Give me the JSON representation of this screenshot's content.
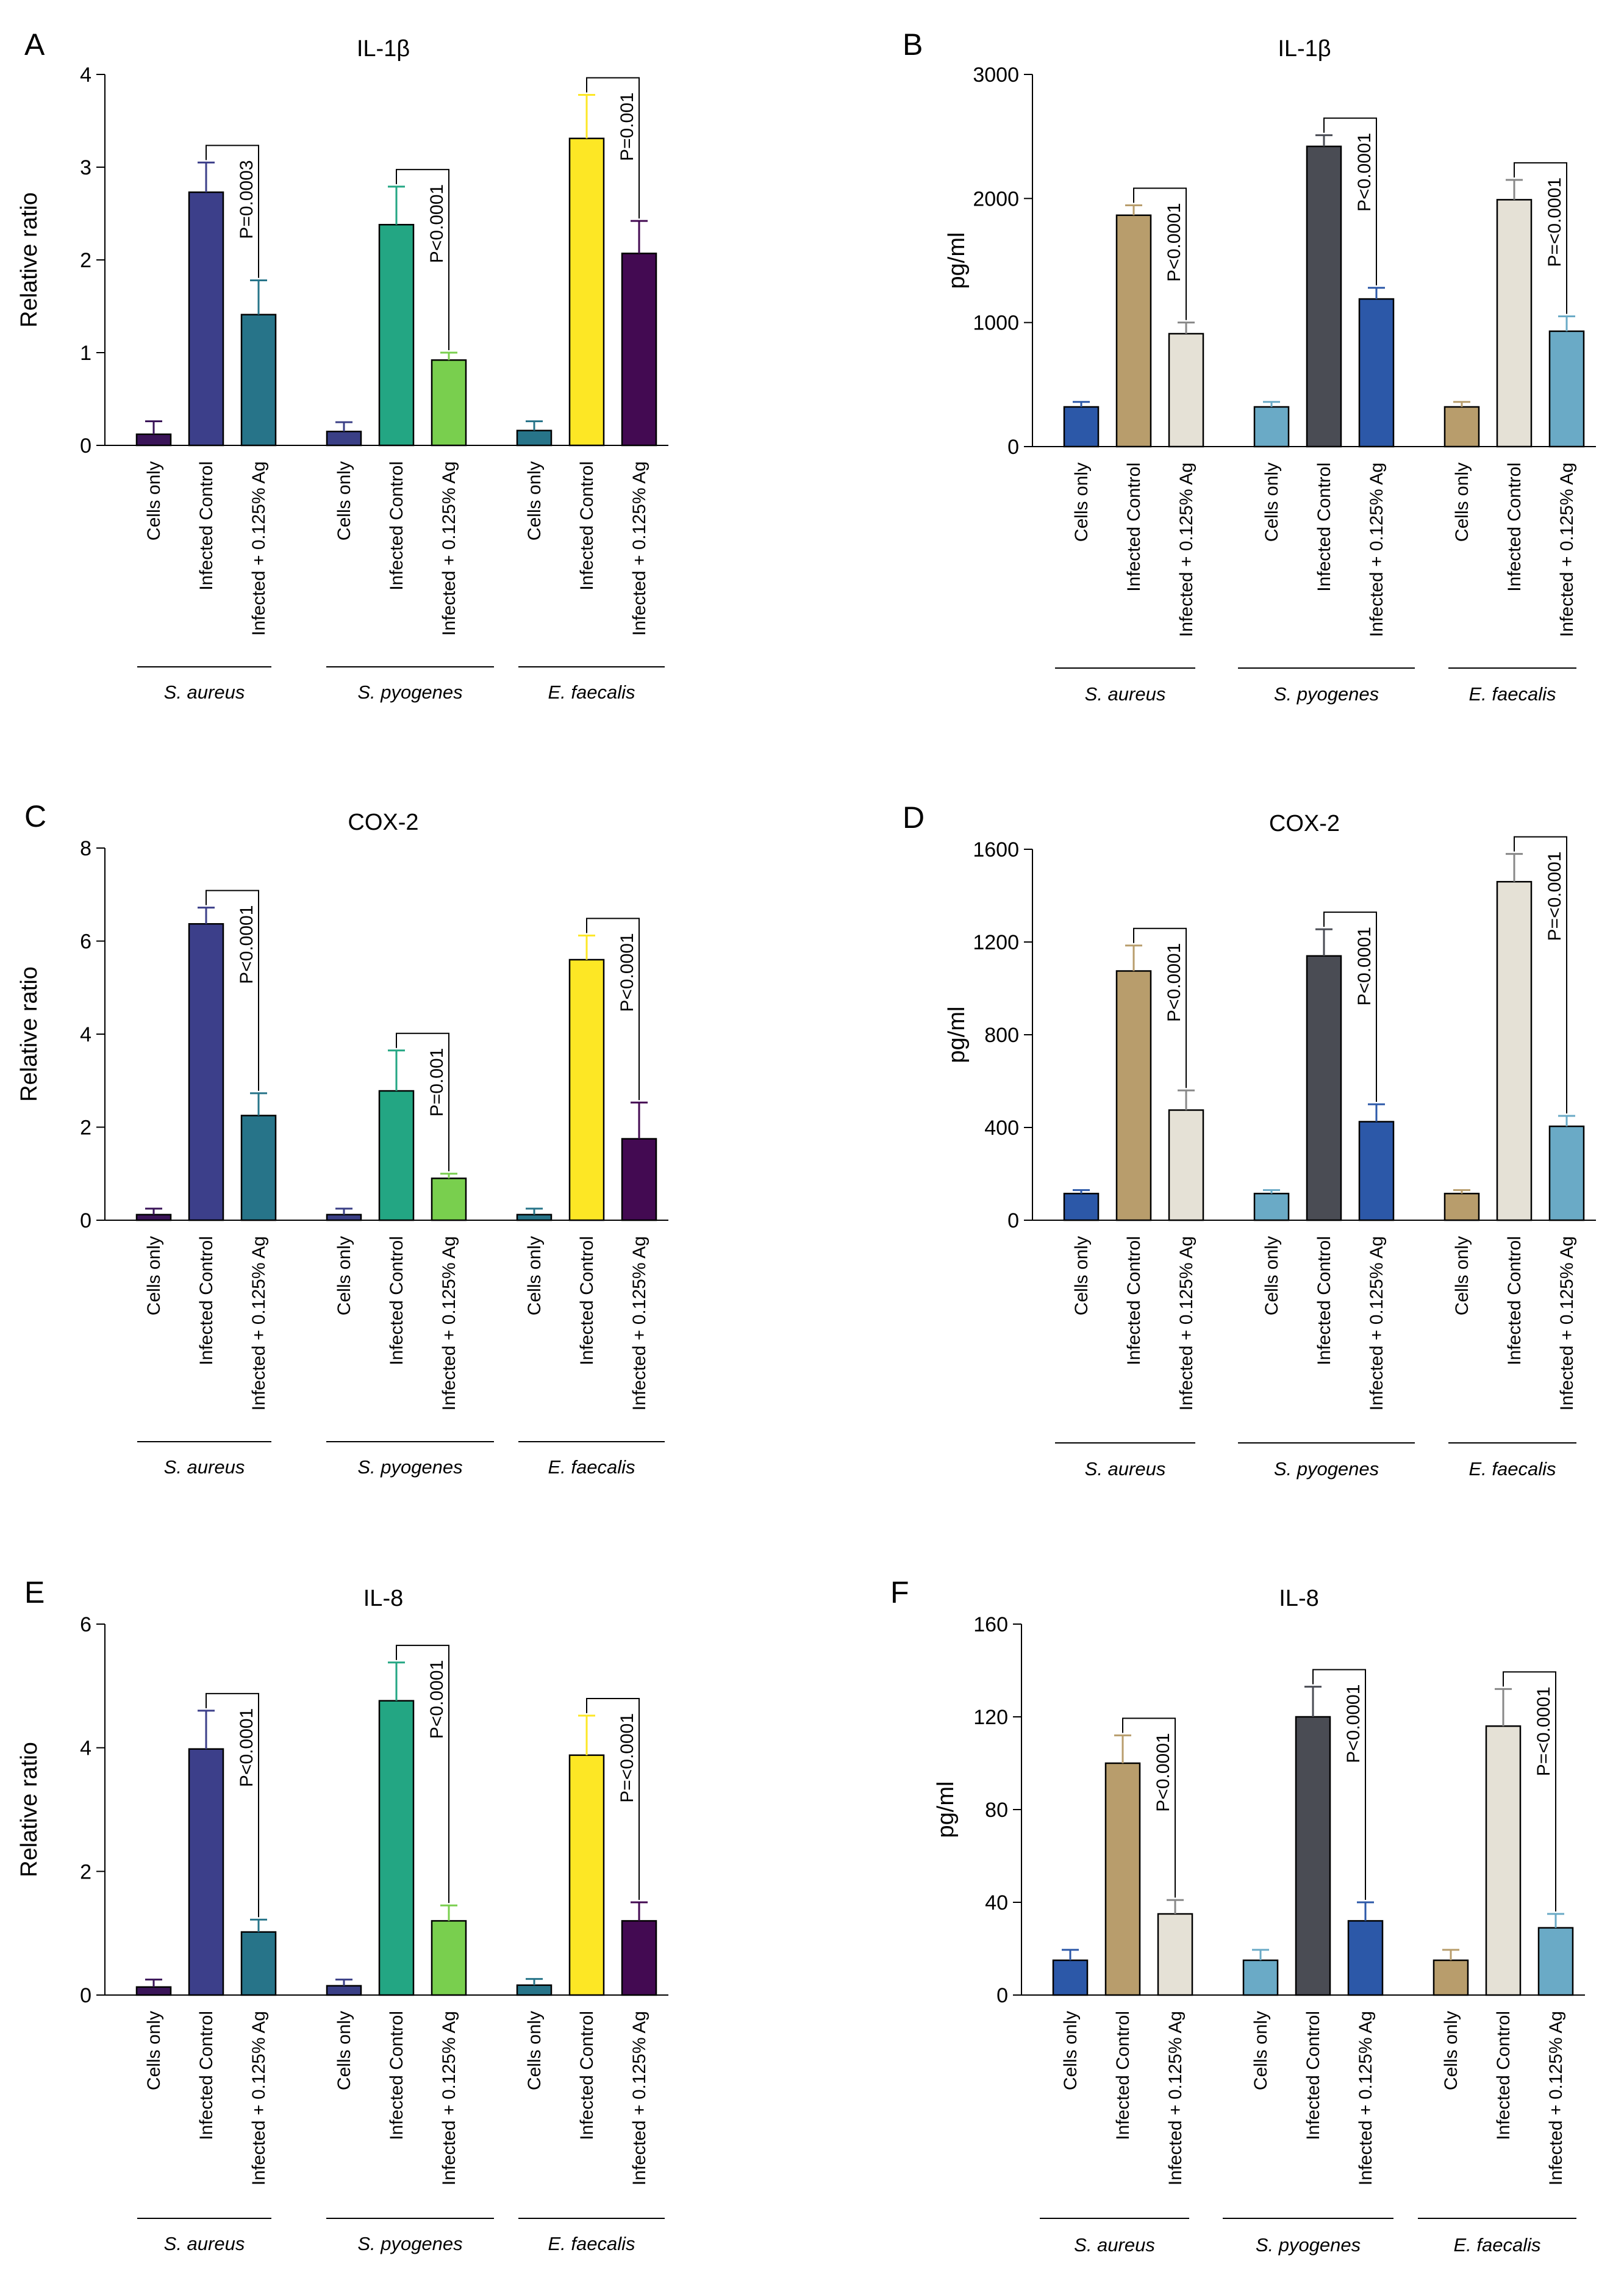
{
  "figure": {
    "groups": [
      "S. aureus",
      "S. pyogenes",
      "E. faecalis"
    ],
    "categories": [
      "Cells only",
      "Infected Control",
      "Infected + 0.125% Ag"
    ]
  },
  "colors": {
    "qpcr": [
      [
        "#3a1458",
        "#3c3f8a",
        "#277489"
      ],
      [
        "#3a3f86",
        "#23a683",
        "#79cf4e"
      ],
      [
        "#277489",
        "#fde725",
        "#430a52"
      ]
    ],
    "elisa": [
      [
        "#2c58a8",
        "#b89d6c",
        "#e5e1d6"
      ],
      [
        "#6aaac6",
        "#4a4c54",
        "#2c58a8"
      ],
      [
        "#b89d6c",
        "#e5e1d6",
        "#6aaac6"
      ]
    ]
  },
  "chart_data": [
    {
      "panel": "A",
      "type": "bar",
      "title": "IL-1β",
      "ylabel": "Relative ratio",
      "ylim": [
        0,
        4
      ],
      "yticks": [
        "0",
        "1",
        "2",
        "3",
        "4"
      ],
      "categories": [
        "Cells only",
        "Infected Control",
        "Infected + 0.125% Ag"
      ],
      "series": [
        {
          "name": "S. aureus",
          "values": [
            0.12,
            2.73,
            1.41
          ],
          "errors": [
            0.14,
            0.32,
            0.37
          ],
          "pvalue": "P=0.0003"
        },
        {
          "name": "S. pyogenes",
          "values": [
            0.15,
            2.38,
            0.92
          ],
          "errors": [
            0.1,
            0.41,
            0.08
          ],
          "pvalue": "P<0.0001"
        },
        {
          "name": "E. faecalis",
          "values": [
            0.16,
            3.31,
            2.07
          ],
          "errors": [
            0.1,
            0.47,
            0.35
          ],
          "pvalue": "P=0.001"
        }
      ]
    },
    {
      "panel": "B",
      "type": "bar",
      "title": "IL-1β",
      "ylabel": "pg/ml",
      "ylim": [
        0,
        3000
      ],
      "yticks": [
        "0",
        "1000",
        "2000",
        "3000"
      ],
      "categories": [
        "Cells only",
        "Infected Control",
        "Infected + 0.125% Ag"
      ],
      "series": [
        {
          "name": "S. aureus",
          "values": [
            320,
            1865,
            910
          ],
          "errors": [
            40,
            80,
            90
          ],
          "pvalue": "P<0.0001"
        },
        {
          "name": "S. pyogenes",
          "values": [
            320,
            2420,
            1190
          ],
          "errors": [
            40,
            90,
            90
          ],
          "pvalue": "P<0.0001"
        },
        {
          "name": "E. faecalis",
          "values": [
            320,
            1990,
            930
          ],
          "errors": [
            40,
            160,
            120
          ],
          "pvalue": "P=<0.0001"
        }
      ]
    },
    {
      "panel": "C",
      "type": "bar",
      "title": "COX-2",
      "ylabel": "Relative ratio",
      "ylim": [
        0,
        8
      ],
      "yticks": [
        "0",
        "2",
        "4",
        "6",
        "8"
      ],
      "categories": [
        "Cells only",
        "Infected Control",
        "Infected + 0.125% Ag"
      ],
      "series": [
        {
          "name": "S. aureus",
          "values": [
            0.12,
            6.37,
            2.25
          ],
          "errors": [
            0.13,
            0.35,
            0.48
          ],
          "pvalue": "P<0.0001"
        },
        {
          "name": "S. pyogenes",
          "values": [
            0.12,
            2.78,
            0.9
          ],
          "errors": [
            0.13,
            0.87,
            0.1
          ],
          "pvalue": "P=0.001"
        },
        {
          "name": "E. faecalis",
          "values": [
            0.12,
            5.6,
            1.75
          ],
          "errors": [
            0.13,
            0.52,
            0.78
          ],
          "pvalue": "P<0.0001"
        }
      ]
    },
    {
      "panel": "D",
      "type": "bar",
      "title": "COX-2",
      "ylabel": "pg/ml",
      "ylim": [
        0,
        1600
      ],
      "yticks": [
        "0",
        "400",
        "800",
        "1200",
        "1600"
      ],
      "categories": [
        "Cells only",
        "Infected Control",
        "Infected + 0.125% Ag"
      ],
      "series": [
        {
          "name": "S. aureus",
          "values": [
            115,
            1075,
            475
          ],
          "errors": [
            15,
            110,
            85
          ],
          "pvalue": "P<0.0001"
        },
        {
          "name": "S. pyogenes",
          "values": [
            115,
            1140,
            425
          ],
          "errors": [
            15,
            115,
            75
          ],
          "pvalue": "P<0.0001"
        },
        {
          "name": "E. faecalis",
          "values": [
            115,
            1460,
            405
          ],
          "errors": [
            15,
            120,
            45
          ],
          "pvalue": "P=<0.0001"
        }
      ]
    },
    {
      "panel": "E",
      "type": "bar",
      "title": "IL-8",
      "ylabel": "Relative ratio",
      "ylim": [
        0,
        6
      ],
      "yticks": [
        "0",
        "2",
        "4",
        "6"
      ],
      "categories": [
        "Cells only",
        "Infected Control",
        "Infected + 0.125% Ag"
      ],
      "series": [
        {
          "name": "S. aureus",
          "values": [
            0.13,
            3.98,
            1.02
          ],
          "errors": [
            0.12,
            0.62,
            0.2
          ],
          "pvalue": "P<0.0001"
        },
        {
          "name": "S. pyogenes",
          "values": [
            0.15,
            4.76,
            1.2
          ],
          "errors": [
            0.1,
            0.62,
            0.25
          ],
          "pvalue": "P<0.0001"
        },
        {
          "name": "E. faecalis",
          "values": [
            0.16,
            3.88,
            1.2
          ],
          "errors": [
            0.1,
            0.64,
            0.3
          ],
          "pvalue": "P=<0.0001"
        }
      ]
    },
    {
      "panel": "F",
      "type": "bar",
      "title": "IL-8",
      "ylabel": "pg/ml",
      "ylim": [
        0,
        160
      ],
      "yticks": [
        "0",
        "40",
        "80",
        "120",
        "160"
      ],
      "categories": [
        "Cells only",
        "Infected Control",
        "Infected + 0.125% Ag"
      ],
      "series": [
        {
          "name": "S. aureus",
          "values": [
            15,
            100,
            35
          ],
          "errors": [
            4.5,
            12,
            6
          ],
          "pvalue": "P<0.0001"
        },
        {
          "name": "S. pyogenes",
          "values": [
            15,
            120,
            32
          ],
          "errors": [
            4.5,
            13,
            8
          ],
          "pvalue": "P<0.0001"
        },
        {
          "name": "E. faecalis",
          "values": [
            15,
            116,
            29
          ],
          "errors": [
            4.5,
            16,
            6
          ],
          "pvalue": "P=<0.0001"
        }
      ]
    }
  ]
}
